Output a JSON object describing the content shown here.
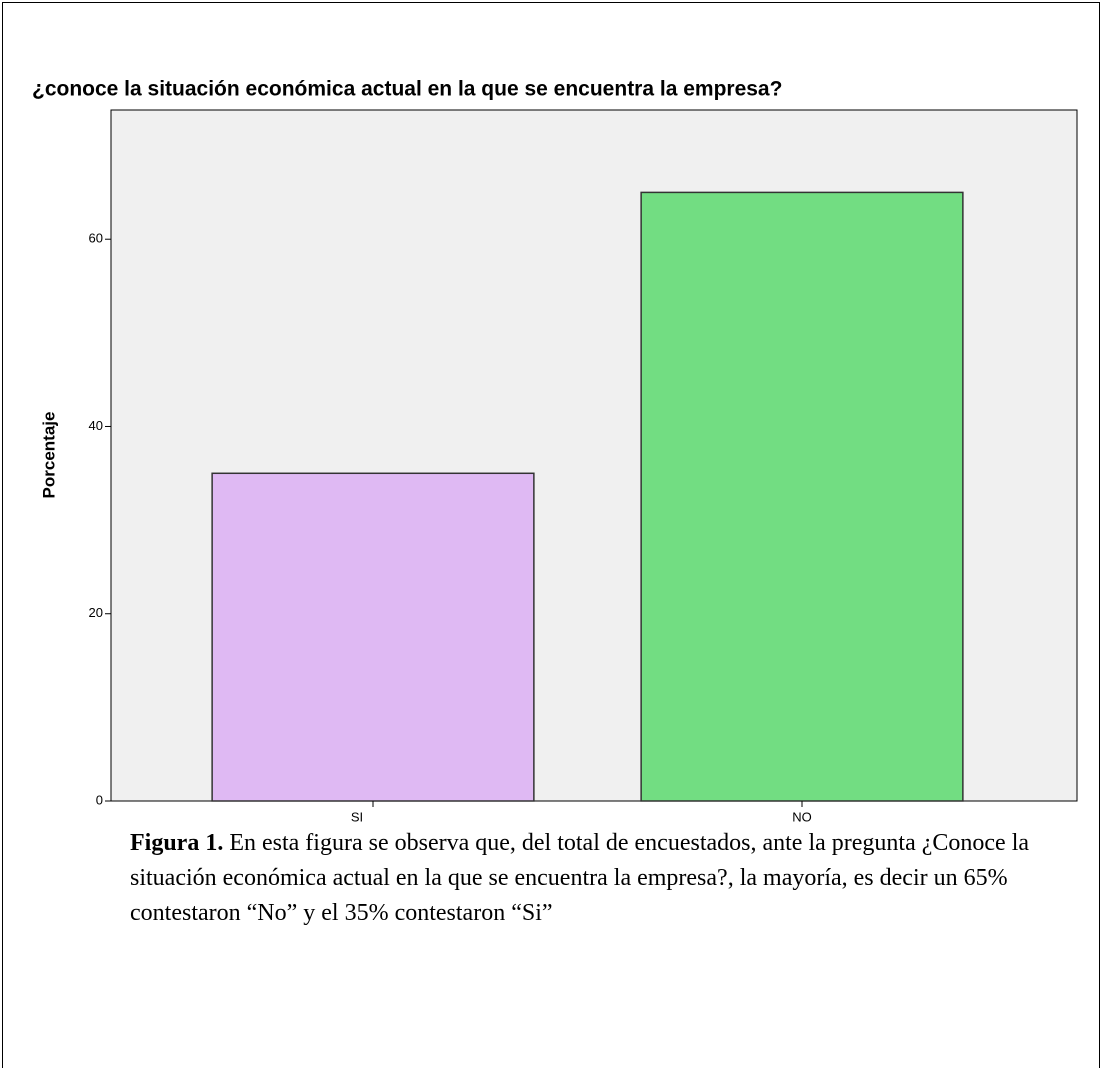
{
  "chart_data": {
    "type": "bar",
    "title": "¿conoce la situación económica actual en la que se encuentra la empresa?",
    "y_label": "Porcentaje",
    "categories": [
      "SI",
      "NO"
    ],
    "series": [
      {
        "name": "Porcentaje",
        "colors": [
          "#dfb9f3",
          "#72dd82"
        ],
        "values": [
          35,
          65
        ]
      }
    ],
    "ylim": [
      0,
      73.8
    ],
    "yticks": [
      0,
      20,
      40,
      60
    ],
    "grid": false
  },
  "caption": {
    "label": "Figura 1.",
    "text": "En esta figura se observa que, del total de encuestados, ante la pregunta ¿Conoce la situación económica actual en la que se encuentra la empresa?, la mayoría, es decir un 65% contestaron “No” y el 35% contestaron “Si”"
  }
}
